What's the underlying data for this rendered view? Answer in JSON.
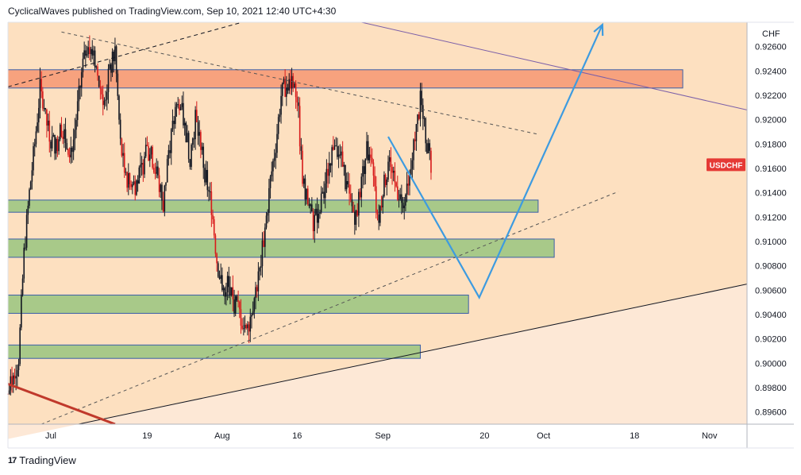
{
  "header": {
    "text": "CyclicalWaves published on TradingView.com, Sep 10, 2021 12:40 UTC+4:30"
  },
  "footer": {
    "logo": "17",
    "brand": "TradingView"
  },
  "colors": {
    "plot_bg": "#fde0c0",
    "lower_bg": "#fde8d6",
    "resistance_zone": "#f7a27e",
    "support_zone": "#a8c989",
    "zone_border": "#3a5fa8",
    "candle": "#131722",
    "candle_down": "#d81b1b",
    "forecast": "#3d9be0",
    "trend_thick": "#c0392b",
    "purple_line": "#7b5fa8",
    "badge": "#e53935"
  },
  "chart_data": {
    "type": "candlestick",
    "symbol_label": "USDCHF",
    "currency_label": "CHF",
    "last_price": 0.9163,
    "y_axis": {
      "range": [
        0.895,
        0.928
      ],
      "ticks": [
        "0.92600",
        "0.92400",
        "0.92200",
        "0.92000",
        "0.91800",
        "0.91600",
        "0.91400",
        "0.91200",
        "0.91000",
        "0.90800",
        "0.90600",
        "0.90400",
        "0.90200",
        "0.90000",
        "0.89800",
        "0.89600"
      ]
    },
    "x_axis": {
      "range": [
        "2021-06-23",
        "2021-11-08"
      ],
      "ticks": [
        {
          "label": "Jul",
          "date": "2021-07-01"
        },
        {
          "label": "19",
          "date": "2021-07-19"
        },
        {
          "label": "Aug",
          "date": "2021-08-02"
        },
        {
          "label": "16",
          "date": "2021-08-16"
        },
        {
          "label": "Sep",
          "date": "2021-09-01"
        },
        {
          "label": "20",
          "date": "2021-09-20"
        },
        {
          "label": "Oct",
          "date": "2021-10-01"
        },
        {
          "label": "18",
          "date": "2021-10-18"
        },
        {
          "label": "Nov",
          "date": "2021-11-01"
        }
      ]
    },
    "zones": [
      {
        "kind": "resistance",
        "x": [
          "2021-06-23",
          "2021-10-27"
        ],
        "y": [
          0.9226,
          0.9241
        ]
      },
      {
        "kind": "support",
        "x": [
          "2021-06-23",
          "2021-09-30"
        ],
        "y": [
          0.9124,
          0.9134
        ]
      },
      {
        "kind": "support",
        "x": [
          "2021-06-23",
          "2021-10-03"
        ],
        "y": [
          0.9087,
          0.9102
        ]
      },
      {
        "kind": "support",
        "x": [
          "2021-06-23",
          "2021-09-17"
        ],
        "y": [
          0.9041,
          0.9056
        ]
      },
      {
        "kind": "support",
        "x": [
          "2021-06-23",
          "2021-09-08"
        ],
        "y": [
          0.9004,
          0.9015
        ]
      }
    ],
    "trendlines": [
      {
        "style": "dashed",
        "color": "#131722",
        "from": [
          "2021-06-23",
          0.9227
        ],
        "to": [
          "2021-08-14",
          0.929
        ]
      },
      {
        "style": "dashed",
        "color": "#555555",
        "from": [
          "2021-07-03",
          0.9272
        ],
        "to": [
          "2021-09-30",
          0.9188
        ]
      },
      {
        "style": "dashed",
        "color": "#555555",
        "from": [
          "2021-06-27",
          0.8946
        ],
        "to": [
          "2021-10-15",
          0.9141
        ]
      },
      {
        "style": "solid",
        "color": "#131722",
        "from": [
          "2021-07-04",
          0.8948
        ],
        "to": [
          "2021-11-08",
          0.9065
        ]
      },
      {
        "style": "solid",
        "color": "#7b5fa8",
        "from": [
          "2021-08-28",
          0.928
        ],
        "to": [
          "2021-11-08",
          0.9208
        ]
      },
      {
        "style": "thick",
        "color": "#c0392b",
        "from": [
          "2021-06-23",
          0.8983
        ],
        "to": [
          "2021-07-13",
          0.895
        ]
      }
    ],
    "forecast_path": [
      {
        "date": "2021-09-02",
        "price": 0.9186
      },
      {
        "date": "2021-09-19",
        "price": 0.9054
      },
      {
        "date": "2021-10-12",
        "price": 0.9278
      }
    ],
    "price_points": [
      [
        "2021-06-23",
        0.8975
      ],
      [
        "2021-06-24",
        0.899
      ],
      [
        "2021-06-25",
        0.9005
      ],
      [
        "2021-06-26",
        0.909
      ],
      [
        "2021-06-27",
        0.914
      ],
      [
        "2021-06-28",
        0.918
      ],
      [
        "2021-06-29",
        0.9225
      ],
      [
        "2021-06-30",
        0.92
      ],
      [
        "2021-07-01",
        0.9185
      ],
      [
        "2021-07-02",
        0.9178
      ],
      [
        "2021-07-03",
        0.9195
      ],
      [
        "2021-07-04",
        0.918
      ],
      [
        "2021-07-05",
        0.9175
      ],
      [
        "2021-07-06",
        0.921
      ],
      [
        "2021-07-07",
        0.9245
      ],
      [
        "2021-07-08",
        0.9265
      ],
      [
        "2021-07-09",
        0.9255
      ],
      [
        "2021-07-10",
        0.923
      ],
      [
        "2021-07-11",
        0.9215
      ],
      [
        "2021-07-12",
        0.924
      ],
      [
        "2021-07-13",
        0.9255
      ],
      [
        "2021-07-14",
        0.918
      ],
      [
        "2021-07-15",
        0.915
      ],
      [
        "2021-07-16",
        0.9145
      ],
      [
        "2021-07-17",
        0.9148
      ],
      [
        "2021-07-18",
        0.916
      ],
      [
        "2021-07-19",
        0.9175
      ],
      [
        "2021-07-20",
        0.9168
      ],
      [
        "2021-07-21",
        0.915
      ],
      [
        "2021-07-22",
        0.913
      ],
      [
        "2021-07-23",
        0.9175
      ],
      [
        "2021-07-24",
        0.92
      ],
      [
        "2021-07-25",
        0.9215
      ],
      [
        "2021-07-26",
        0.9195
      ],
      [
        "2021-07-27",
        0.917
      ],
      [
        "2021-07-28",
        0.92
      ],
      [
        "2021-07-29",
        0.918
      ],
      [
        "2021-07-30",
        0.915
      ],
      [
        "2021-07-31",
        0.913
      ],
      [
        "2021-08-01",
        0.9085
      ],
      [
        "2021-08-02",
        0.906
      ],
      [
        "2021-08-03",
        0.9065
      ],
      [
        "2021-08-04",
        0.905
      ],
      [
        "2021-08-05",
        0.9045
      ],
      [
        "2021-08-06",
        0.903
      ],
      [
        "2021-08-07",
        0.9035
      ],
      [
        "2021-08-08",
        0.9055
      ],
      [
        "2021-08-09",
        0.9075
      ],
      [
        "2021-08-10",
        0.911
      ],
      [
        "2021-08-11",
        0.915
      ],
      [
        "2021-08-12",
        0.918
      ],
      [
        "2021-08-13",
        0.922
      ],
      [
        "2021-08-14",
        0.923
      ],
      [
        "2021-08-15",
        0.9235
      ],
      [
        "2021-08-16",
        0.922
      ],
      [
        "2021-08-17",
        0.915
      ],
      [
        "2021-08-18",
        0.913
      ],
      [
        "2021-08-19",
        0.9115
      ],
      [
        "2021-08-20",
        0.9125
      ],
      [
        "2021-08-21",
        0.914
      ],
      [
        "2021-08-22",
        0.9165
      ],
      [
        "2021-08-23",
        0.9185
      ],
      [
        "2021-08-24",
        0.917
      ],
      [
        "2021-08-25",
        0.915
      ],
      [
        "2021-08-26",
        0.913
      ],
      [
        "2021-08-27",
        0.912
      ],
      [
        "2021-08-28",
        0.915
      ],
      [
        "2021-08-29",
        0.9175
      ],
      [
        "2021-08-30",
        0.916
      ],
      [
        "2021-08-31",
        0.9115
      ],
      [
        "2021-09-01",
        0.914
      ],
      [
        "2021-09-02",
        0.9165
      ],
      [
        "2021-09-03",
        0.915
      ],
      [
        "2021-09-04",
        0.914
      ],
      [
        "2021-09-05",
        0.9135
      ],
      [
        "2021-09-06",
        0.915
      ],
      [
        "2021-09-07",
        0.9185
      ],
      [
        "2021-09-08",
        0.9215
      ],
      [
        "2021-09-09",
        0.9185
      ],
      [
        "2021-09-10",
        0.9163
      ]
    ]
  }
}
